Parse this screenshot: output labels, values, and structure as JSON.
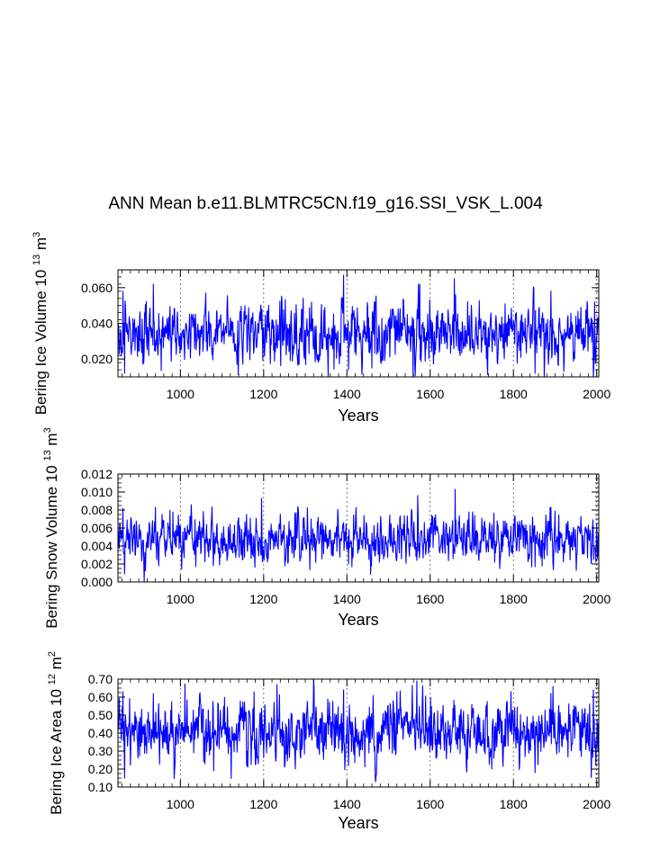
{
  "title": "ANN Mean b.e11.BLMTRC5CN.f19_g16.SSI_VSK_L.004",
  "colors": {
    "series": "#0000ff",
    "axes": "#000000",
    "grid": "#555555"
  },
  "chart_data": [
    {
      "type": "line",
      "name": "Bering Ice Volume",
      "ylabel_main": "Bering Ice Volume 10",
      "ylabel_exp": "13",
      "ylabel_unit": "m",
      "ylabel_unit_exp": "3",
      "xlabel": "Years",
      "xlim": [
        850,
        2005
      ],
      "ylim": [
        0.01,
        0.07
      ],
      "xticks": [
        1000,
        1200,
        1400,
        1600,
        1800,
        2000
      ],
      "xtick_labels": [
        "1000",
        "1200",
        "1400",
        "1600",
        "1800",
        "2000"
      ],
      "yticks": [
        0.02,
        0.04,
        0.06
      ],
      "ytick_labels": [
        "0.020",
        "0.040",
        "0.060"
      ],
      "gridlines_x": [
        1000,
        1200,
        1400,
        1600,
        1800,
        2000
      ],
      "series": {
        "start_year": 850,
        "end_year": 2005,
        "mean": 0.034,
        "std": 0.0085,
        "seed": 17,
        "extremes": [
          [
            862,
            0.058
          ],
          [
            866,
            0.012
          ],
          [
            935,
            0.062
          ],
          [
            1061,
            0.057
          ],
          [
            1180,
            0.041
          ],
          [
            1392,
            0.067
          ],
          [
            1404,
            0.014
          ],
          [
            1460,
            0.015
          ],
          [
            1575,
            0.062
          ],
          [
            1658,
            0.065
          ],
          [
            1852,
            0.012
          ],
          [
            1890,
            0.058
          ],
          [
            1995,
            0.052
          ],
          [
            1998,
            0.019
          ]
        ]
      }
    },
    {
      "type": "line",
      "name": "Bering Snow Volume",
      "ylabel_main": "Bering Snow Volume 10",
      "ylabel_exp": "13",
      "ylabel_unit": "m",
      "ylabel_unit_exp": "3",
      "xlabel": "Years",
      "xlim": [
        850,
        2005
      ],
      "ylim": [
        0.0,
        0.012
      ],
      "xticks": [
        1000,
        1200,
        1400,
        1600,
        1800,
        2000
      ],
      "xtick_labels": [
        "1000",
        "1200",
        "1400",
        "1600",
        "1800",
        "2000"
      ],
      "yticks": [
        0.0,
        0.002,
        0.004,
        0.006,
        0.008,
        0.01,
        0.012
      ],
      "ytick_labels": [
        "0.000",
        "0.002",
        "0.004",
        "0.006",
        "0.008",
        "0.010",
        "0.012"
      ],
      "gridlines_x": [
        1000,
        1200,
        1400,
        1600,
        1800,
        2000
      ],
      "series": {
        "start_year": 850,
        "end_year": 2005,
        "mean": 0.0048,
        "std": 0.0013,
        "seed": 29,
        "extremes": [
          [
            862,
            0.0082
          ],
          [
            866,
            0.0009
          ],
          [
            940,
            0.0083
          ],
          [
            1195,
            0.0093
          ],
          [
            1404,
            0.002
          ],
          [
            1570,
            0.0096
          ],
          [
            1660,
            0.0103
          ],
          [
            1755,
            0.0022
          ],
          [
            1852,
            0.0017
          ],
          [
            1890,
            0.0083
          ],
          [
            1998,
            0.0022
          ]
        ]
      }
    },
    {
      "type": "line",
      "name": "Bering Ice Area",
      "ylabel_main": "Bering Ice Area 10",
      "ylabel_exp": "12",
      "ylabel_unit": "m",
      "ylabel_unit_exp": "2",
      "xlabel": "Years",
      "xlim": [
        850,
        2005
      ],
      "ylim": [
        0.1,
        0.7
      ],
      "xticks": [
        1000,
        1200,
        1400,
        1600,
        1800,
        2000
      ],
      "xtick_labels": [
        "1000",
        "1200",
        "1400",
        "1600",
        "1800",
        "2000"
      ],
      "yticks": [
        0.1,
        0.2,
        0.3,
        0.4,
        0.5,
        0.6,
        0.7
      ],
      "ytick_labels": [
        "0.10",
        "0.20",
        "0.30",
        "0.40",
        "0.50",
        "0.60",
        "0.70"
      ],
      "gridlines_x": [
        1000,
        1200,
        1400,
        1600,
        1800,
        2000
      ],
      "series": {
        "start_year": 850,
        "end_year": 2005,
        "mean": 0.4,
        "std": 0.085,
        "seed": 43,
        "extremes": [
          [
            862,
            0.63
          ],
          [
            866,
            0.15
          ],
          [
            935,
            0.62
          ],
          [
            1080,
            0.19
          ],
          [
            1392,
            0.64
          ],
          [
            1404,
            0.22
          ],
          [
            1568,
            0.69
          ],
          [
            1748,
            0.2
          ],
          [
            1852,
            0.18
          ],
          [
            1890,
            0.62
          ],
          [
            1992,
            0.64
          ],
          [
            1998,
            0.22
          ]
        ]
      }
    }
  ]
}
